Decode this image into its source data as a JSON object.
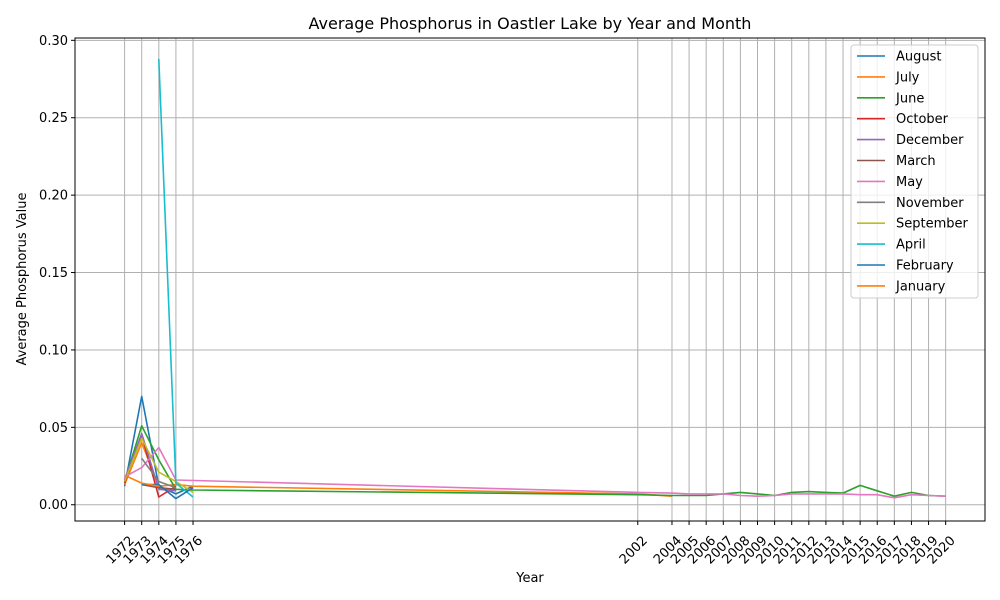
{
  "chart_data": {
    "type": "line",
    "title": "Average Phosphorus in Oastler Lake by Year and Month",
    "xlabel": "Year",
    "ylabel": "Average Phosphorus Value",
    "xlim": [
      1969.1,
      2022.3
    ],
    "ylim": [
      -0.0105,
      0.3015
    ],
    "x_ticks": [
      1972,
      1973,
      1974,
      1975,
      1976,
      2002,
      2004,
      2005,
      2006,
      2007,
      2008,
      2009,
      2010,
      2011,
      2012,
      2013,
      2014,
      2015,
      2016,
      2017,
      2018,
      2019,
      2020
    ],
    "x_tick_labels": [
      "1972",
      "1973",
      "1974",
      "1975",
      "1976",
      "2002",
      "2004",
      "2005",
      "2006",
      "2007",
      "2008",
      "2009",
      "2010",
      "2011",
      "2012",
      "2013",
      "2014",
      "2015",
      "2016",
      "2017",
      "2018",
      "2019",
      "2020"
    ],
    "y_ticks": [
      0.0,
      0.05,
      0.1,
      0.15,
      0.2,
      0.25,
      0.3
    ],
    "y_tick_labels": [
      "0.00",
      "0.05",
      "0.10",
      "0.15",
      "0.20",
      "0.25",
      "0.30"
    ],
    "grid": true,
    "legend_position": "top-right",
    "series": [
      {
        "name": "August",
        "color": "#1f77b4",
        "x": [
          1972,
          1973,
          1974,
          1975,
          1976
        ],
        "y": [
          0.012,
          0.07,
          0.012,
          0.007,
          0.012
        ]
      },
      {
        "name": "July",
        "color": "#ff7f0e",
        "x": [
          1972,
          1973,
          1974,
          1975,
          1976,
          2002,
          2004
        ],
        "y": [
          0.013,
          0.04,
          0.012,
          0.013,
          0.012,
          0.007,
          0.0055
        ]
      },
      {
        "name": "June",
        "color": "#2ca02c",
        "x": [
          1972,
          1973,
          1974,
          1975,
          1976,
          2002,
          2004,
          2005,
          2006,
          2007,
          2008,
          2009,
          2010,
          2011,
          2012,
          2013,
          2014,
          2015,
          2016,
          2017,
          2018,
          2019,
          2020
        ],
        "y": [
          0.015,
          0.051,
          0.029,
          0.01,
          0.0095,
          0.0065,
          0.006,
          0.006,
          0.006,
          0.007,
          0.008,
          0.007,
          0.006,
          0.008,
          0.0085,
          0.008,
          0.0075,
          0.0125,
          0.009,
          0.0055,
          0.008,
          0.006,
          0.0055
        ]
      },
      {
        "name": "October",
        "color": "#d62728",
        "x": [
          1972,
          1973,
          1974,
          1975
        ],
        "y": [
          0.014,
          0.045,
          0.005,
          0.012
        ]
      },
      {
        "name": "December",
        "color": "#9467bd",
        "x": [
          1972,
          1973,
          1974,
          1975
        ],
        "y": [
          0.016,
          0.046,
          0.01,
          0.009
        ]
      },
      {
        "name": "March",
        "color": "#8c564b",
        "x": [
          1973,
          1974,
          1975
        ],
        "y": [
          0.013,
          0.011,
          0.01
        ]
      },
      {
        "name": "May",
        "color": "#e377c2",
        "x": [
          1972,
          1973,
          1974,
          1975,
          2002,
          2004,
          2005,
          2006,
          2007,
          2008,
          2009,
          2010,
          2011,
          2012,
          2013,
          2014,
          2015,
          2016,
          2017,
          2018,
          2019,
          2020
        ],
        "y": [
          0.018,
          0.024,
          0.037,
          0.016,
          0.008,
          0.0075,
          0.007,
          0.007,
          0.007,
          0.006,
          0.0055,
          0.006,
          0.007,
          0.007,
          0.007,
          0.007,
          0.0065,
          0.0065,
          0.0045,
          0.0065,
          0.006,
          0.0055
        ]
      },
      {
        "name": "November",
        "color": "#7f7f7f",
        "x": [
          1973,
          1974,
          1975
        ],
        "y": [
          0.03,
          0.015,
          0.011
        ]
      },
      {
        "name": "September",
        "color": "#bcbd22",
        "x": [
          1972,
          1973,
          1974,
          1975,
          1976
        ],
        "y": [
          0.015,
          0.043,
          0.021,
          0.015,
          0.008
        ]
      },
      {
        "name": "April",
        "color": "#17becf",
        "x": [
          1974,
          1975,
          1976
        ],
        "y": [
          0.288,
          0.014,
          0.005
        ]
      },
      {
        "name": "February",
        "color": "#1f77b4",
        "x": [
          1973,
          1974,
          1975,
          1976
        ],
        "y": [
          0.013,
          0.013,
          0.004,
          0.011
        ]
      },
      {
        "name": "January",
        "color": "#ff7f0e",
        "x": [
          1972,
          1973,
          1974
        ],
        "y": [
          0.019,
          0.014,
          0.012
        ]
      }
    ]
  }
}
